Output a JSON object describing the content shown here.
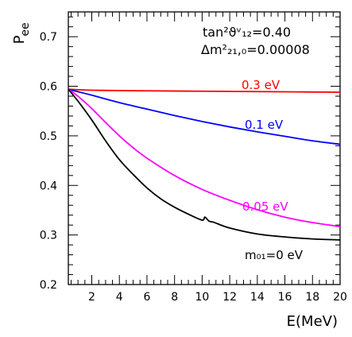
{
  "chart_data": {
    "type": "line",
    "xlabel": "E(MeV)",
    "ylabel": "P",
    "ylabel_sub": "ee",
    "xlim": [
      0.3,
      20
    ],
    "ylim": [
      0.2,
      0.75
    ],
    "xticks": [
      2,
      4,
      6,
      8,
      10,
      12,
      14,
      16,
      18,
      20
    ],
    "yticks": [
      0.2,
      0.3,
      0.4,
      0.5,
      0.6,
      0.7
    ],
    "ytick_labels": [
      "0.2",
      "0.3",
      "0.4",
      "0.5",
      "0.6",
      "0.7"
    ],
    "grid": false,
    "annotations": [
      {
        "text": "tan²ϑᵛ₁₂=0.40"
      },
      {
        "text": "Δm²₂₁,₀=0.00008"
      }
    ],
    "series": [
      {
        "name": "0.3 eV",
        "color": "#ff0000",
        "x": [
          0.3,
          2,
          5,
          10,
          15,
          20
        ],
        "y": [
          0.594,
          0.592,
          0.591,
          0.59,
          0.589,
          0.588
        ]
      },
      {
        "name": "0.1 eV",
        "color": "#0000ff",
        "x": [
          0.3,
          1,
          2,
          4,
          6,
          8,
          10,
          12,
          14,
          16,
          18,
          20
        ],
        "y": [
          0.594,
          0.589,
          0.582,
          0.567,
          0.554,
          0.541,
          0.529,
          0.518,
          0.508,
          0.499,
          0.49,
          0.483
        ]
      },
      {
        "name": "0.05 eV",
        "color": "#ff00ff",
        "x": [
          0.3,
          1,
          2,
          3,
          4,
          5,
          6,
          8,
          10,
          12,
          14,
          16,
          18,
          20
        ],
        "y": [
          0.594,
          0.58,
          0.555,
          0.527,
          0.5,
          0.476,
          0.455,
          0.42,
          0.392,
          0.37,
          0.351,
          0.336,
          0.325,
          0.317
        ]
      },
      {
        "name": "m₀₁=0 eV",
        "color": "#000000",
        "x": [
          0.3,
          1,
          2,
          3,
          4,
          5,
          6,
          7,
          8,
          9,
          10,
          10.2,
          10.5,
          10.8,
          11,
          12,
          14,
          16,
          18,
          20
        ],
        "y": [
          0.594,
          0.57,
          0.532,
          0.49,
          0.452,
          0.422,
          0.395,
          0.373,
          0.356,
          0.342,
          0.33,
          0.336,
          0.328,
          0.326,
          0.324,
          0.314,
          0.302,
          0.296,
          0.292,
          0.29
        ]
      }
    ]
  }
}
